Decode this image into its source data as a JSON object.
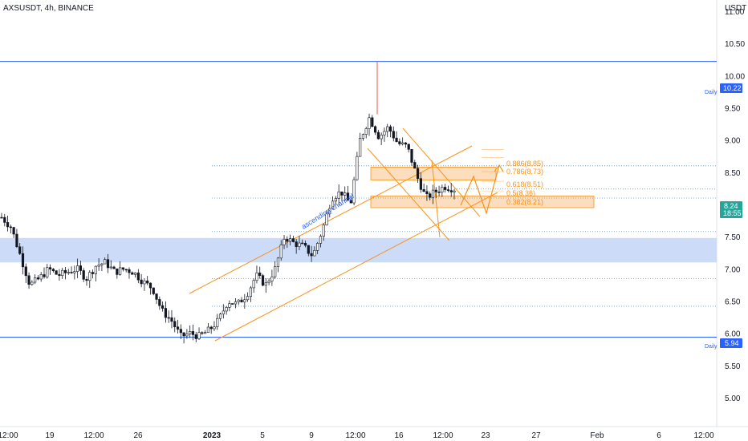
{
  "header": {
    "title": "AXSUSDT, 4h, BINANCE"
  },
  "y_axis": {
    "unit_label": "USDT",
    "ticks": [
      "11.00",
      "10.50",
      "10.00",
      "9.50",
      "9.00",
      "8.50",
      "8.00",
      "7.50",
      "7.00",
      "6.50",
      "6.00",
      "5.50",
      "5.00"
    ]
  },
  "x_axis": {
    "ticks": [
      {
        "label": "12:00",
        "bold": false
      },
      {
        "label": "19",
        "bold": false
      },
      {
        "label": "12:00",
        "bold": false
      },
      {
        "label": "26",
        "bold": false
      },
      {
        "label": "2023",
        "bold": true
      },
      {
        "label": "5",
        "bold": false
      },
      {
        "label": "9",
        "bold": false
      },
      {
        "label": "12:00",
        "bold": false
      },
      {
        "label": "16",
        "bold": false
      },
      {
        "label": "12:00",
        "bold": false
      },
      {
        "label": "23",
        "bold": false
      },
      {
        "label": "27",
        "bold": false
      },
      {
        "label": "Feb",
        "bold": false
      },
      {
        "label": "6",
        "bold": false
      },
      {
        "label": "12:00",
        "bold": false
      }
    ]
  },
  "levels": {
    "upper": {
      "price": "10.22",
      "tag": "Daily"
    },
    "lower": {
      "price": "5.94",
      "tag": "Daily"
    }
  },
  "current_price": {
    "price": "8.24",
    "countdown": "18:55"
  },
  "fib_labels": [
    "0.886(8.85)",
    "0.786(8.73)",
    "0.618(8.51)",
    "0.5(8.36)",
    "0.382(8.21)"
  ],
  "annotation": "ascending channel",
  "colors": {
    "up": "#26a69a",
    "down": "#ef5350",
    "candle": "#131722",
    "orange": "#f7931a",
    "blue_line": "#2962ff",
    "blue_zone": "#c9daf8",
    "price_tag": "#26a69a"
  },
  "chart_data": {
    "type": "candlestick",
    "symbol": "AXSUSDT",
    "interval": "4h",
    "exchange": "BINANCE",
    "y_range": [
      4.7,
      11.2
    ],
    "horizontal_levels": [
      10.22,
      5.94
    ],
    "zones": [
      {
        "from": 7.1,
        "to": 7.48,
        "color": "blue"
      },
      {
        "from": 8.38,
        "to": 8.58,
        "color": "orange"
      },
      {
        "from": 7.95,
        "to": 8.13,
        "color": "orange"
      }
    ],
    "dotted_levels": [
      8.6,
      8.1,
      7.58,
      6.85,
      6.42
    ],
    "fibonacci": [
      {
        "ratio": 0.886,
        "price": 8.85
      },
      {
        "ratio": 0.786,
        "price": 8.73
      },
      {
        "ratio": 0.618,
        "price": 8.51
      },
      {
        "ratio": 0.5,
        "price": 8.36
      },
      {
        "ratio": 0.382,
        "price": 8.21
      }
    ],
    "close_path": [
      7.8,
      7.65,
      7.2,
      6.75,
      6.85,
      7.0,
      6.9,
      6.95,
      7.0,
      6.85,
      7.05,
      7.1,
      6.95,
      7.0,
      6.95,
      6.8,
      6.7,
      6.35,
      6.2,
      5.95,
      6.0,
      5.95,
      6.05,
      6.2,
      6.5,
      6.45,
      6.6,
      6.9,
      6.75,
      7.0,
      7.5,
      7.4,
      7.35,
      7.2,
      7.6,
      8.1,
      8.2,
      8.0,
      9.0,
      9.35,
      9.05,
      9.2,
      8.95,
      8.9,
      8.45,
      8.1,
      8.2,
      8.28,
      8.24
    ],
    "last_price": 8.24
  }
}
